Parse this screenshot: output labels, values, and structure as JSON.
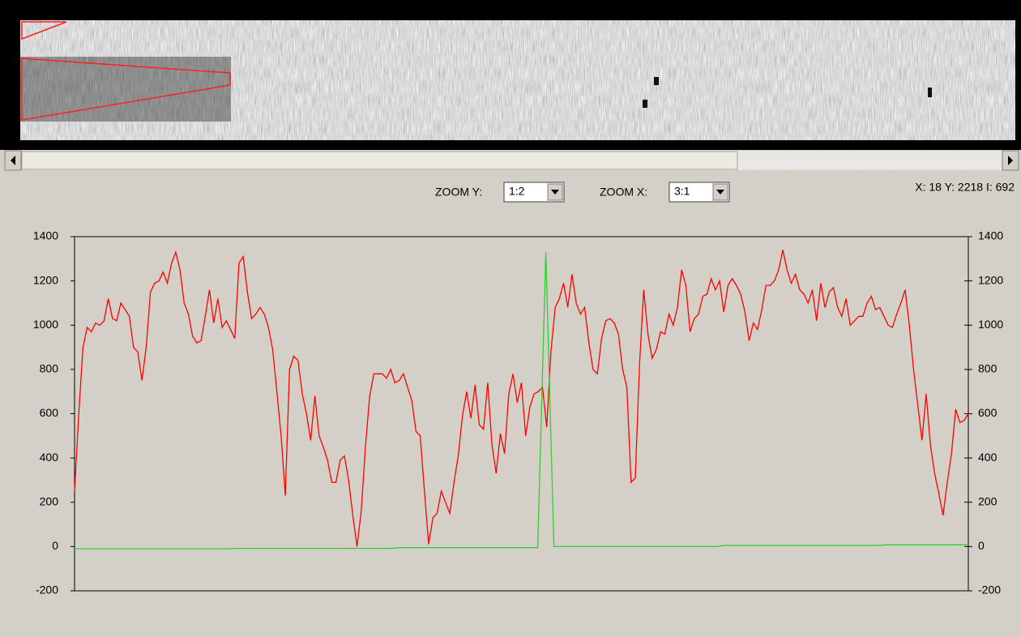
{
  "controls": {
    "zoom_y_label": "ZOOM Y:",
    "zoom_y_value": "1:2",
    "zoom_x_label": "ZOOM X:",
    "zoom_x_value": "3:1",
    "status": "X: 18 Y: 2218 I: 692"
  },
  "chart_data": {
    "type": "line",
    "ylim": [
      -200,
      1400
    ],
    "yticks": [
      -200,
      0,
      200,
      400,
      600,
      800,
      1000,
      1200,
      1400
    ],
    "y2lim": [
      -200,
      1400
    ],
    "y2ticks": [
      -200,
      0,
      200,
      400,
      600,
      800,
      1000,
      1200,
      1400
    ],
    "series": [
      {
        "color": "#ff0000",
        "values": [
          250,
          600,
          900,
          990,
          970,
          1010,
          1000,
          1020,
          1120,
          1030,
          1020,
          1100,
          1070,
          1040,
          900,
          880,
          750,
          900,
          1150,
          1190,
          1200,
          1240,
          1190,
          1280,
          1330,
          1250,
          1100,
          1050,
          950,
          920,
          930,
          1040,
          1160,
          1010,
          1120,
          990,
          1020,
          980,
          940,
          1280,
          1310,
          1150,
          1030,
          1050,
          1080,
          1050,
          990,
          890,
          700,
          500,
          230,
          800,
          860,
          840,
          690,
          600,
          480,
          680,
          500,
          450,
          390,
          290,
          290,
          390,
          410,
          300,
          140,
          0,
          160,
          450,
          680,
          780,
          780,
          780,
          760,
          800,
          740,
          750,
          780,
          720,
          660,
          520,
          500,
          250,
          10,
          130,
          150,
          250,
          200,
          150,
          290,
          410,
          590,
          700,
          580,
          730,
          550,
          530,
          740,
          460,
          330,
          510,
          420,
          690,
          780,
          650,
          740,
          500,
          630,
          690,
          700,
          720,
          540,
          880,
          1080,
          1120,
          1190,
          1080,
          1230,
          1100,
          1050,
          1080,
          920,
          800,
          780,
          940,
          1020,
          1030,
          1010,
          960,
          800,
          720,
          290,
          310,
          820,
          1160,
          960,
          850,
          890,
          970,
          960,
          1050,
          1000,
          1080,
          1250,
          1180,
          970,
          1030,
          1050,
          1130,
          1140,
          1210,
          1160,
          1200,
          1060,
          1180,
          1210,
          1180,
          1140,
          1060,
          930,
          1010,
          980,
          1070,
          1180,
          1180,
          1200,
          1250,
          1340,
          1250,
          1190,
          1230,
          1160,
          1140,
          1100,
          1160,
          1020,
          1190,
          1080,
          1150,
          1170,
          1080,
          1040,
          1120,
          1000,
          1020,
          1040,
          1040,
          1100,
          1130,
          1070,
          1080,
          1040,
          1000,
          990,
          1050,
          1100,
          1160,
          1000,
          800,
          640,
          480,
          690,
          460,
          330,
          240,
          140,
          290,
          420,
          620,
          560,
          570,
          600
        ]
      },
      {
        "color": "#33cc33",
        "values": [
          -10,
          -10,
          -10,
          -10,
          -10,
          -10,
          -10,
          -10,
          -10,
          -10,
          -10,
          -10,
          -10,
          -10,
          -10,
          -10,
          -10,
          -10,
          -10,
          -10,
          -8,
          -8,
          -8,
          -8,
          -8,
          -8,
          -8,
          -8,
          -8,
          -8,
          -8,
          -8,
          -8,
          -8,
          -8,
          -8,
          -8,
          -8,
          -8,
          -8,
          -5,
          -5,
          -5,
          -5,
          -5,
          -5,
          -5,
          -5,
          -5,
          -5,
          -5,
          -5,
          -5,
          -5,
          -5,
          -5,
          -5,
          -5,
          1330,
          0,
          0,
          0,
          0,
          0,
          0,
          0,
          0,
          0,
          0,
          0,
          0,
          0,
          0,
          0,
          0,
          0,
          0,
          0,
          0,
          0,
          5,
          5,
          5,
          5,
          5,
          5,
          5,
          5,
          5,
          5,
          5,
          5,
          5,
          5,
          5,
          5,
          5,
          5,
          5,
          5,
          8,
          8,
          8,
          8,
          8,
          8,
          8,
          8,
          8,
          8,
          8
        ]
      }
    ]
  }
}
